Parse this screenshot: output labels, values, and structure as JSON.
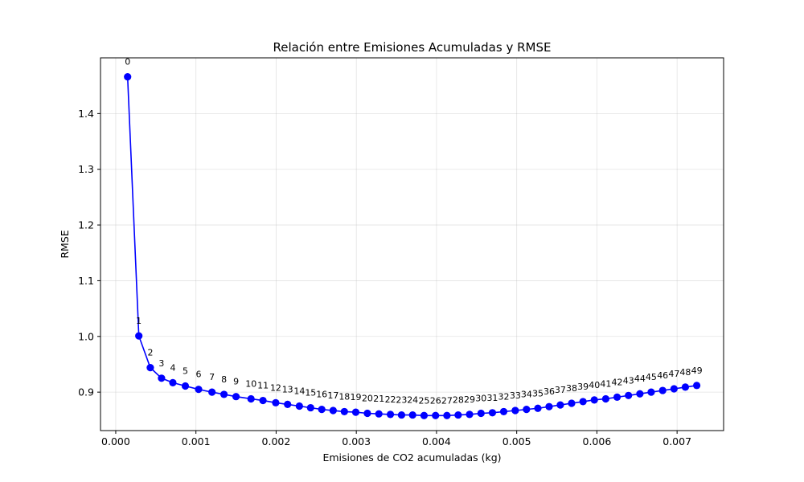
{
  "chart_data": {
    "type": "line",
    "title": "Relación entre Emisiones Acumuladas y RMSE",
    "xlabel": "Emisiones de CO2 acumuladas (kg)",
    "ylabel": "RMSE",
    "xlim": [
      -0.00019,
      0.00758
    ],
    "ylim": [
      0.831,
      1.5
    ],
    "xticks": [
      0.0,
      0.001,
      0.002,
      0.003,
      0.004,
      0.005,
      0.006,
      0.007
    ],
    "xtick_labels": [
      "0.000",
      "0.001",
      "0.002",
      "0.003",
      "0.004",
      "0.005",
      "0.006",
      "0.007"
    ],
    "yticks": [
      0.9,
      1.0,
      1.1,
      1.2,
      1.3,
      1.4
    ],
    "ytick_labels": [
      "0.9",
      "1.0",
      "1.1",
      "1.2",
      "1.3",
      "1.4"
    ],
    "grid": true,
    "series": [
      {
        "color": "#0000ff",
        "marker": "circle",
        "x": [
          0.000148,
          0.000288,
          0.000431,
          0.000571,
          0.000712,
          0.000868,
          0.001033,
          0.0012,
          0.00135,
          0.0015,
          0.001687,
          0.001836,
          0.001995,
          0.002143,
          0.00229,
          0.00243,
          0.002569,
          0.002711,
          0.002851,
          0.002993,
          0.003138,
          0.003281,
          0.003425,
          0.003564,
          0.003702,
          0.003845,
          0.003988,
          0.00413,
          0.00427,
          0.004412,
          0.004555,
          0.004697,
          0.004838,
          0.004982,
          0.005122,
          0.005264,
          0.005404,
          0.005544,
          0.005685,
          0.005827,
          0.005968,
          0.00611,
          0.006252,
          0.006394,
          0.006536,
          0.006677,
          0.00682,
          0.006962,
          0.007103,
          0.007245
        ],
        "y": [
          1.466,
          1.001,
          0.944,
          0.925,
          0.917,
          0.911,
          0.905,
          0.9,
          0.896,
          0.892,
          0.888,
          0.885,
          0.881,
          0.878,
          0.875,
          0.872,
          0.869,
          0.867,
          0.865,
          0.864,
          0.862,
          0.861,
          0.86,
          0.859,
          0.859,
          0.858,
          0.858,
          0.858,
          0.859,
          0.86,
          0.862,
          0.863,
          0.865,
          0.867,
          0.869,
          0.871,
          0.874,
          0.877,
          0.88,
          0.883,
          0.886,
          0.888,
          0.891,
          0.894,
          0.897,
          0.9,
          0.903,
          0.906,
          0.909,
          0.912
        ],
        "labels": [
          "0",
          "1",
          "2",
          "3",
          "4",
          "5",
          "6",
          "7",
          "8",
          "9",
          "10",
          "11",
          "12",
          "13",
          "14",
          "15",
          "16",
          "17",
          "18",
          "19",
          "20",
          "21",
          "22",
          "23",
          "24",
          "25",
          "26",
          "27",
          "28",
          "29",
          "30",
          "31",
          "32",
          "33",
          "34",
          "35",
          "36",
          "37",
          "38",
          "39",
          "40",
          "41",
          "42",
          "43",
          "44",
          "45",
          "46",
          "47",
          "48",
          "49"
        ]
      }
    ]
  }
}
